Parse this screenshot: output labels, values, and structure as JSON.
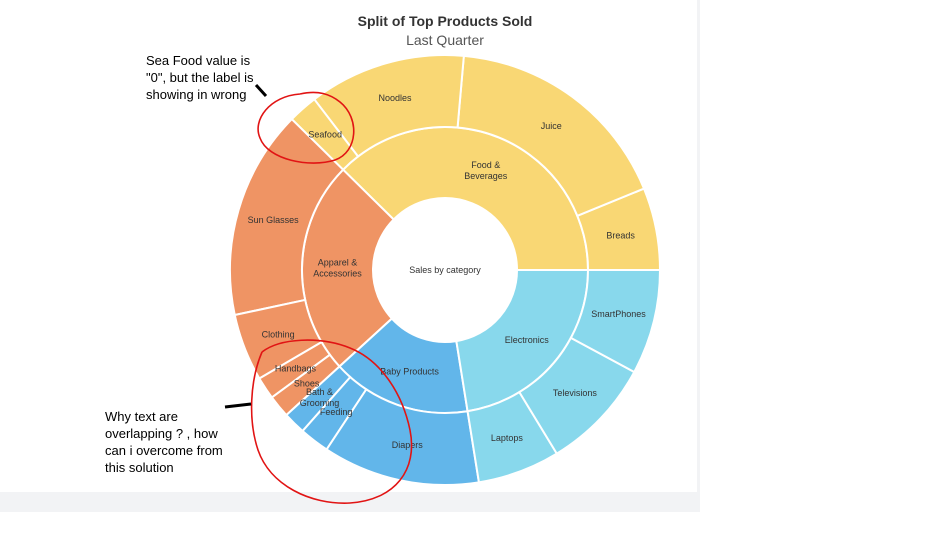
{
  "chart_data": {
    "type": "sunburst",
    "title": "Split of Top Products Sold",
    "subtitle": "Last Quarter",
    "center_label": "Sales by category",
    "categories": [
      {
        "name": "Food & Beverages",
        "color": "#f9d774",
        "children": [
          {
            "name": "Breads",
            "value": 11
          },
          {
            "name": "Juice",
            "value": 31
          },
          {
            "name": "Noodles",
            "value": 21
          },
          {
            "name": "Seafood",
            "value": 0
          }
        ]
      },
      {
        "name": "Apparel & Accessories",
        "color": "#ef9464",
        "children": [
          {
            "name": "Sun Glasses",
            "value": 28
          },
          {
            "name": "Clothing",
            "value": 9
          },
          {
            "name": "Handbags",
            "value": 3
          },
          {
            "name": "Shoes",
            "value": 3
          }
        ]
      },
      {
        "name": "Baby Products",
        "color": "#62b6ea",
        "children": [
          {
            "name": "Bath & Grooming",
            "value": 3
          },
          {
            "name": "Feeding",
            "value": 4
          },
          {
            "name": "Diapers",
            "value": 21
          }
        ]
      },
      {
        "name": "Electronics",
        "color": "#88d8ec",
        "children": [
          {
            "name": "Laptops",
            "value": 11
          },
          {
            "name": "Televisions",
            "value": 15
          },
          {
            "name": "SmartPhones",
            "value": 14
          }
        ]
      }
    ]
  },
  "annotations": {
    "note_top": "Sea Food value is\n\"0\", but the label is\nshowing in wrong",
    "note_bottom": "Why text are\noverlapping ? , how\ncan i overcome from\nthis solution"
  },
  "colors": {
    "background": "#ffffff",
    "segment_border": "#ffffff",
    "annotation_stroke": "#e11414"
  }
}
